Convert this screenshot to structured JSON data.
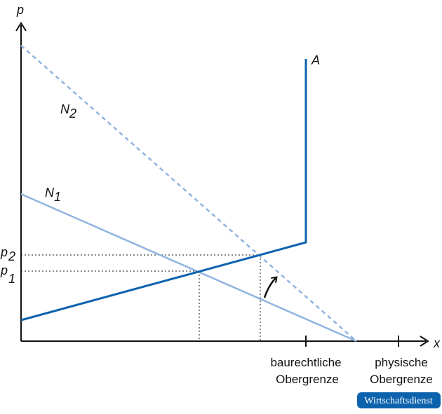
{
  "axes": {
    "y_label": "p",
    "x_label": "x"
  },
  "curves": {
    "supply": "A",
    "demand_2": {
      "base": "N",
      "sub": "2"
    },
    "demand_1": {
      "base": "N",
      "sub": "1"
    }
  },
  "prices": {
    "p2": {
      "base": "p",
      "sub": "2"
    },
    "p1": {
      "base": "p",
      "sub": "1"
    }
  },
  "limits": {
    "legal": [
      "baurechtliche",
      "Obergrenze"
    ],
    "physical": [
      "physische",
      "Obergrenze"
    ]
  },
  "source": "Wirtschaftsdienst"
}
